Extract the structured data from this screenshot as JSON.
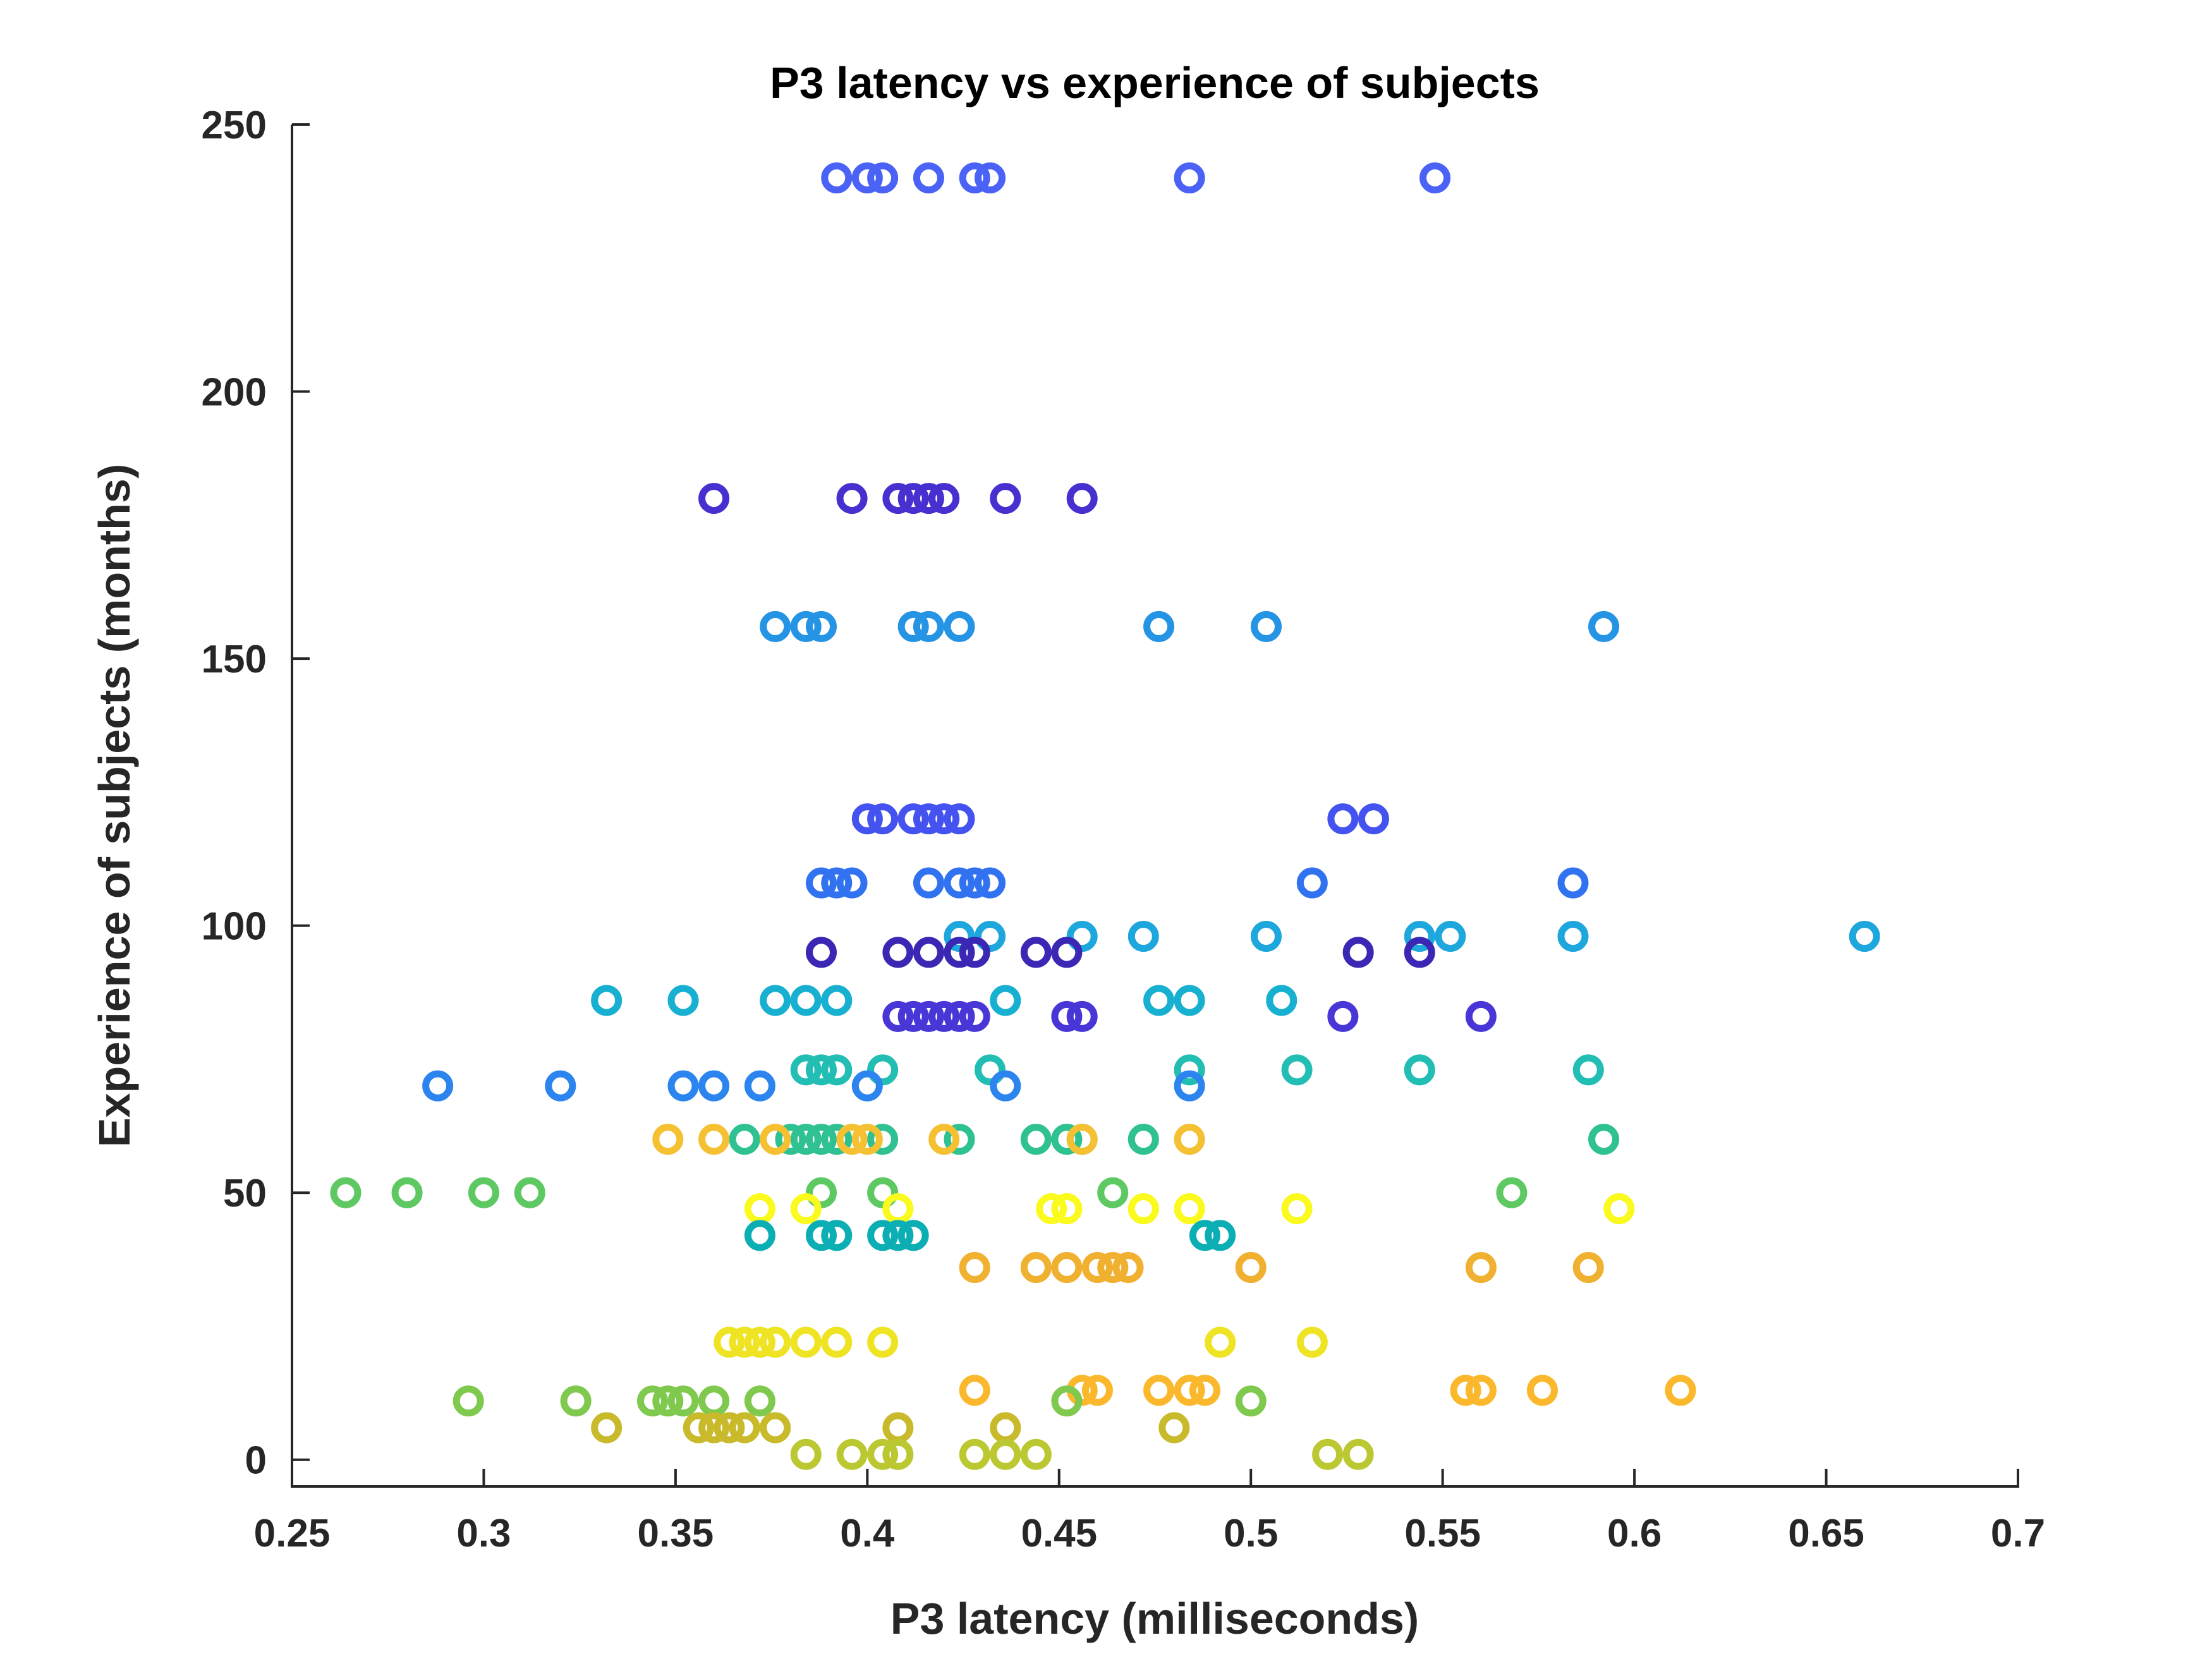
{
  "chart_data": {
    "type": "scatter",
    "title": "P3 latency vs experience of subjects",
    "xlabel": "P3 latency (milliseconds)",
    "ylabel": "Experience of subjects (months)",
    "xlim": [
      0.25,
      0.7
    ],
    "ylim": [
      -5,
      250
    ],
    "xticks": [
      0.25,
      0.3,
      0.35,
      0.4,
      0.45,
      0.5,
      0.55,
      0.6,
      0.65,
      0.7
    ],
    "xtick_labels": [
      "0.25",
      "0.3",
      "0.35",
      "0.4",
      "0.45",
      "0.5",
      "0.55",
      "0.6",
      "0.65",
      "0.7"
    ],
    "yticks": [
      0,
      50,
      100,
      150,
      200,
      250
    ],
    "ytick_labels": [
      "0",
      "50",
      "100",
      "150",
      "200",
      "250"
    ],
    "grid": false,
    "series": [
      {
        "y": 240,
        "color": "#4a62f5",
        "x": [
          0.392,
          0.4,
          0.404,
          0.416,
          0.428,
          0.432,
          0.484,
          0.548
        ]
      },
      {
        "y": 180,
        "color": "#4630cf",
        "x": [
          0.36,
          0.396,
          0.408,
          0.412,
          0.416,
          0.42,
          0.436,
          0.456
        ]
      },
      {
        "y": 156,
        "color": "#2594e4",
        "x": [
          0.376,
          0.384,
          0.388,
          0.412,
          0.416,
          0.424,
          0.476,
          0.504,
          0.592
        ]
      },
      {
        "y": 120,
        "color": "#4453f0",
        "x": [
          0.4,
          0.404,
          0.412,
          0.416,
          0.42,
          0.424,
          0.524,
          0.532
        ]
      },
      {
        "y": 108,
        "color": "#3172f0",
        "x": [
          0.388,
          0.392,
          0.396,
          0.416,
          0.424,
          0.428,
          0.432,
          0.516,
          0.584
        ]
      },
      {
        "y": 98,
        "color": "#1ea7dd",
        "x": [
          0.424,
          0.432,
          0.456,
          0.472,
          0.504,
          0.544,
          0.552,
          0.584,
          0.66
        ]
      },
      {
        "y": 95,
        "color": "#3a27b4",
        "x": [
          0.388,
          0.408,
          0.416,
          0.424,
          0.428,
          0.444,
          0.452,
          0.528,
          0.544
        ]
      },
      {
        "y": 86,
        "color": "#17b0d0",
        "x": [
          0.332,
          0.352,
          0.376,
          0.384,
          0.392,
          0.436,
          0.476,
          0.484,
          0.508
        ]
      },
      {
        "y": 83,
        "color": "#4836d6",
        "x": [
          0.408,
          0.412,
          0.416,
          0.42,
          0.424,
          0.428,
          0.452,
          0.456,
          0.524,
          0.56
        ]
      },
      {
        "y": 73,
        "color": "#22bdb3",
        "x": [
          0.384,
          0.388,
          0.392,
          0.404,
          0.432,
          0.484,
          0.512,
          0.544,
          0.588
        ]
      },
      {
        "y": 70,
        "color": "#2c84ee",
        "x": [
          0.288,
          0.32,
          0.352,
          0.36,
          0.372,
          0.4,
          0.436,
          0.484
        ]
      },
      {
        "y": 60,
        "color": "#2fc191",
        "x": [
          0.368,
          0.38,
          0.384,
          0.388,
          0.392,
          0.404,
          0.424,
          0.444,
          0.452,
          0.456,
          0.472,
          0.592
        ]
      },
      {
        "y": 60,
        "color": "#f5c032",
        "x": [
          0.348,
          0.36,
          0.376,
          0.396,
          0.4,
          0.42,
          0.456,
          0.484
        ]
      },
      {
        "y": 50,
        "color": "#5ec962",
        "x": [
          0.264,
          0.28,
          0.3,
          0.312,
          0.388,
          0.404,
          0.464,
          0.568
        ]
      },
      {
        "y": 47,
        "color": "#fafa1e",
        "x": [
          0.372,
          0.384,
          0.408,
          0.448,
          0.452,
          0.472,
          0.484,
          0.512,
          0.596
        ]
      },
      {
        "y": 42,
        "color": "#0bafb3",
        "x": [
          0.372,
          0.388,
          0.392,
          0.404,
          0.408,
          0.412,
          0.488,
          0.492
        ]
      },
      {
        "y": 36,
        "color": "#f0b030",
        "x": [
          0.428,
          0.444,
          0.452,
          0.46,
          0.464,
          0.468,
          0.5,
          0.56,
          0.588
        ]
      },
      {
        "y": 22,
        "color": "#eee424",
        "x": [
          0.364,
          0.368,
          0.372,
          0.376,
          0.384,
          0.392,
          0.404,
          0.492,
          0.516
        ]
      },
      {
        "y": 13,
        "color": "#fbb82c",
        "x": [
          0.428,
          0.456,
          0.46,
          0.476,
          0.484,
          0.488,
          0.556,
          0.56,
          0.576,
          0.612
        ]
      },
      {
        "y": 11,
        "color": "#7ec94e",
        "x": [
          0.296,
          0.324,
          0.344,
          0.348,
          0.352,
          0.36,
          0.372,
          0.452,
          0.5
        ]
      },
      {
        "y": 6,
        "color": "#c8ba2a",
        "x": [
          0.332,
          0.356,
          0.36,
          0.364,
          0.368,
          0.376,
          0.408,
          0.436,
          0.48
        ]
      },
      {
        "y": 1,
        "color": "#bbc832",
        "x": [
          0.384,
          0.396,
          0.404,
          0.408,
          0.428,
          0.436,
          0.444,
          0.52,
          0.528
        ]
      }
    ]
  }
}
